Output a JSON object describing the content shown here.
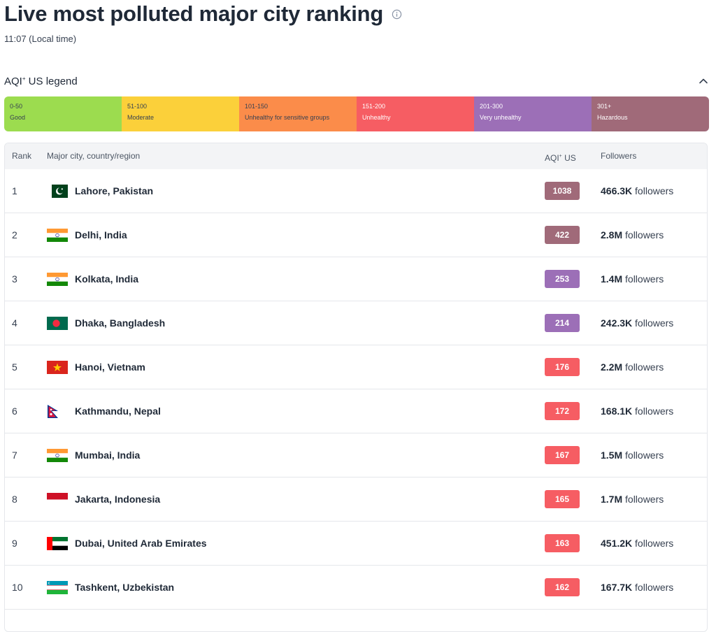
{
  "header": {
    "title": "Live most polluted major city ranking",
    "local_time": "11:07 (Local time)"
  },
  "legend": {
    "title_prefix": "AQI",
    "title_sup": "+",
    "title_suffix": " US legend",
    "segments": [
      {
        "range": "0-50",
        "label": "Good",
        "color": "#9cdc4f"
      },
      {
        "range": "51-100",
        "label": "Moderate",
        "color": "#fbd03a"
      },
      {
        "range": "101-150",
        "label": "Unhealthy for sensitive groups",
        "color": "#fb8c4a"
      },
      {
        "range": "151-200",
        "label": "Unhealthy",
        "color": "#f65d63"
      },
      {
        "range": "201-300",
        "label": "Very unhealthy",
        "color": "#9c6fb7"
      },
      {
        "range": "301+",
        "label": "Hazardous",
        "color": "#a06a79"
      }
    ]
  },
  "table": {
    "headers": {
      "rank": "Rank",
      "city": "Major city, country/region",
      "aqi_prefix": "AQI",
      "aqi_sup": "+",
      "aqi_suffix": " US",
      "followers": "Followers"
    },
    "followers_word": "followers",
    "rows": [
      {
        "rank": "1",
        "city": "Lahore, Pakistan",
        "flag": "pakistan-flag-icon",
        "aqi": "1038",
        "aqi_color": "#a06a79",
        "followers_count": "466.3K"
      },
      {
        "rank": "2",
        "city": "Delhi, India",
        "flag": "india-flag-icon",
        "aqi": "422",
        "aqi_color": "#a06a79",
        "followers_count": "2.8M"
      },
      {
        "rank": "3",
        "city": "Kolkata, India",
        "flag": "india-flag-icon",
        "aqi": "253",
        "aqi_color": "#9c6fb7",
        "followers_count": "1.4M"
      },
      {
        "rank": "4",
        "city": "Dhaka, Bangladesh",
        "flag": "bangladesh-flag-icon",
        "aqi": "214",
        "aqi_color": "#9c6fb7",
        "followers_count": "242.3K"
      },
      {
        "rank": "5",
        "city": "Hanoi, Vietnam",
        "flag": "vietnam-flag-icon",
        "aqi": "176",
        "aqi_color": "#f65d63",
        "followers_count": "2.2M"
      },
      {
        "rank": "6",
        "city": "Kathmandu, Nepal",
        "flag": "nepal-flag-icon",
        "aqi": "172",
        "aqi_color": "#f65d63",
        "followers_count": "168.1K"
      },
      {
        "rank": "7",
        "city": "Mumbai, India",
        "flag": "india-flag-icon",
        "aqi": "167",
        "aqi_color": "#f65d63",
        "followers_count": "1.5M"
      },
      {
        "rank": "8",
        "city": "Jakarta, Indonesia",
        "flag": "indonesia-flag-icon",
        "aqi": "165",
        "aqi_color": "#f65d63",
        "followers_count": "1.7M"
      },
      {
        "rank": "9",
        "city": "Dubai, United Arab Emirates",
        "flag": "uae-flag-icon",
        "aqi": "163",
        "aqi_color": "#f65d63",
        "followers_count": "451.2K"
      },
      {
        "rank": "10",
        "city": "Tashkent, Uzbekistan",
        "flag": "uzbekistan-flag-icon",
        "aqi": "162",
        "aqi_color": "#f65d63",
        "followers_count": "167.7K"
      }
    ]
  }
}
